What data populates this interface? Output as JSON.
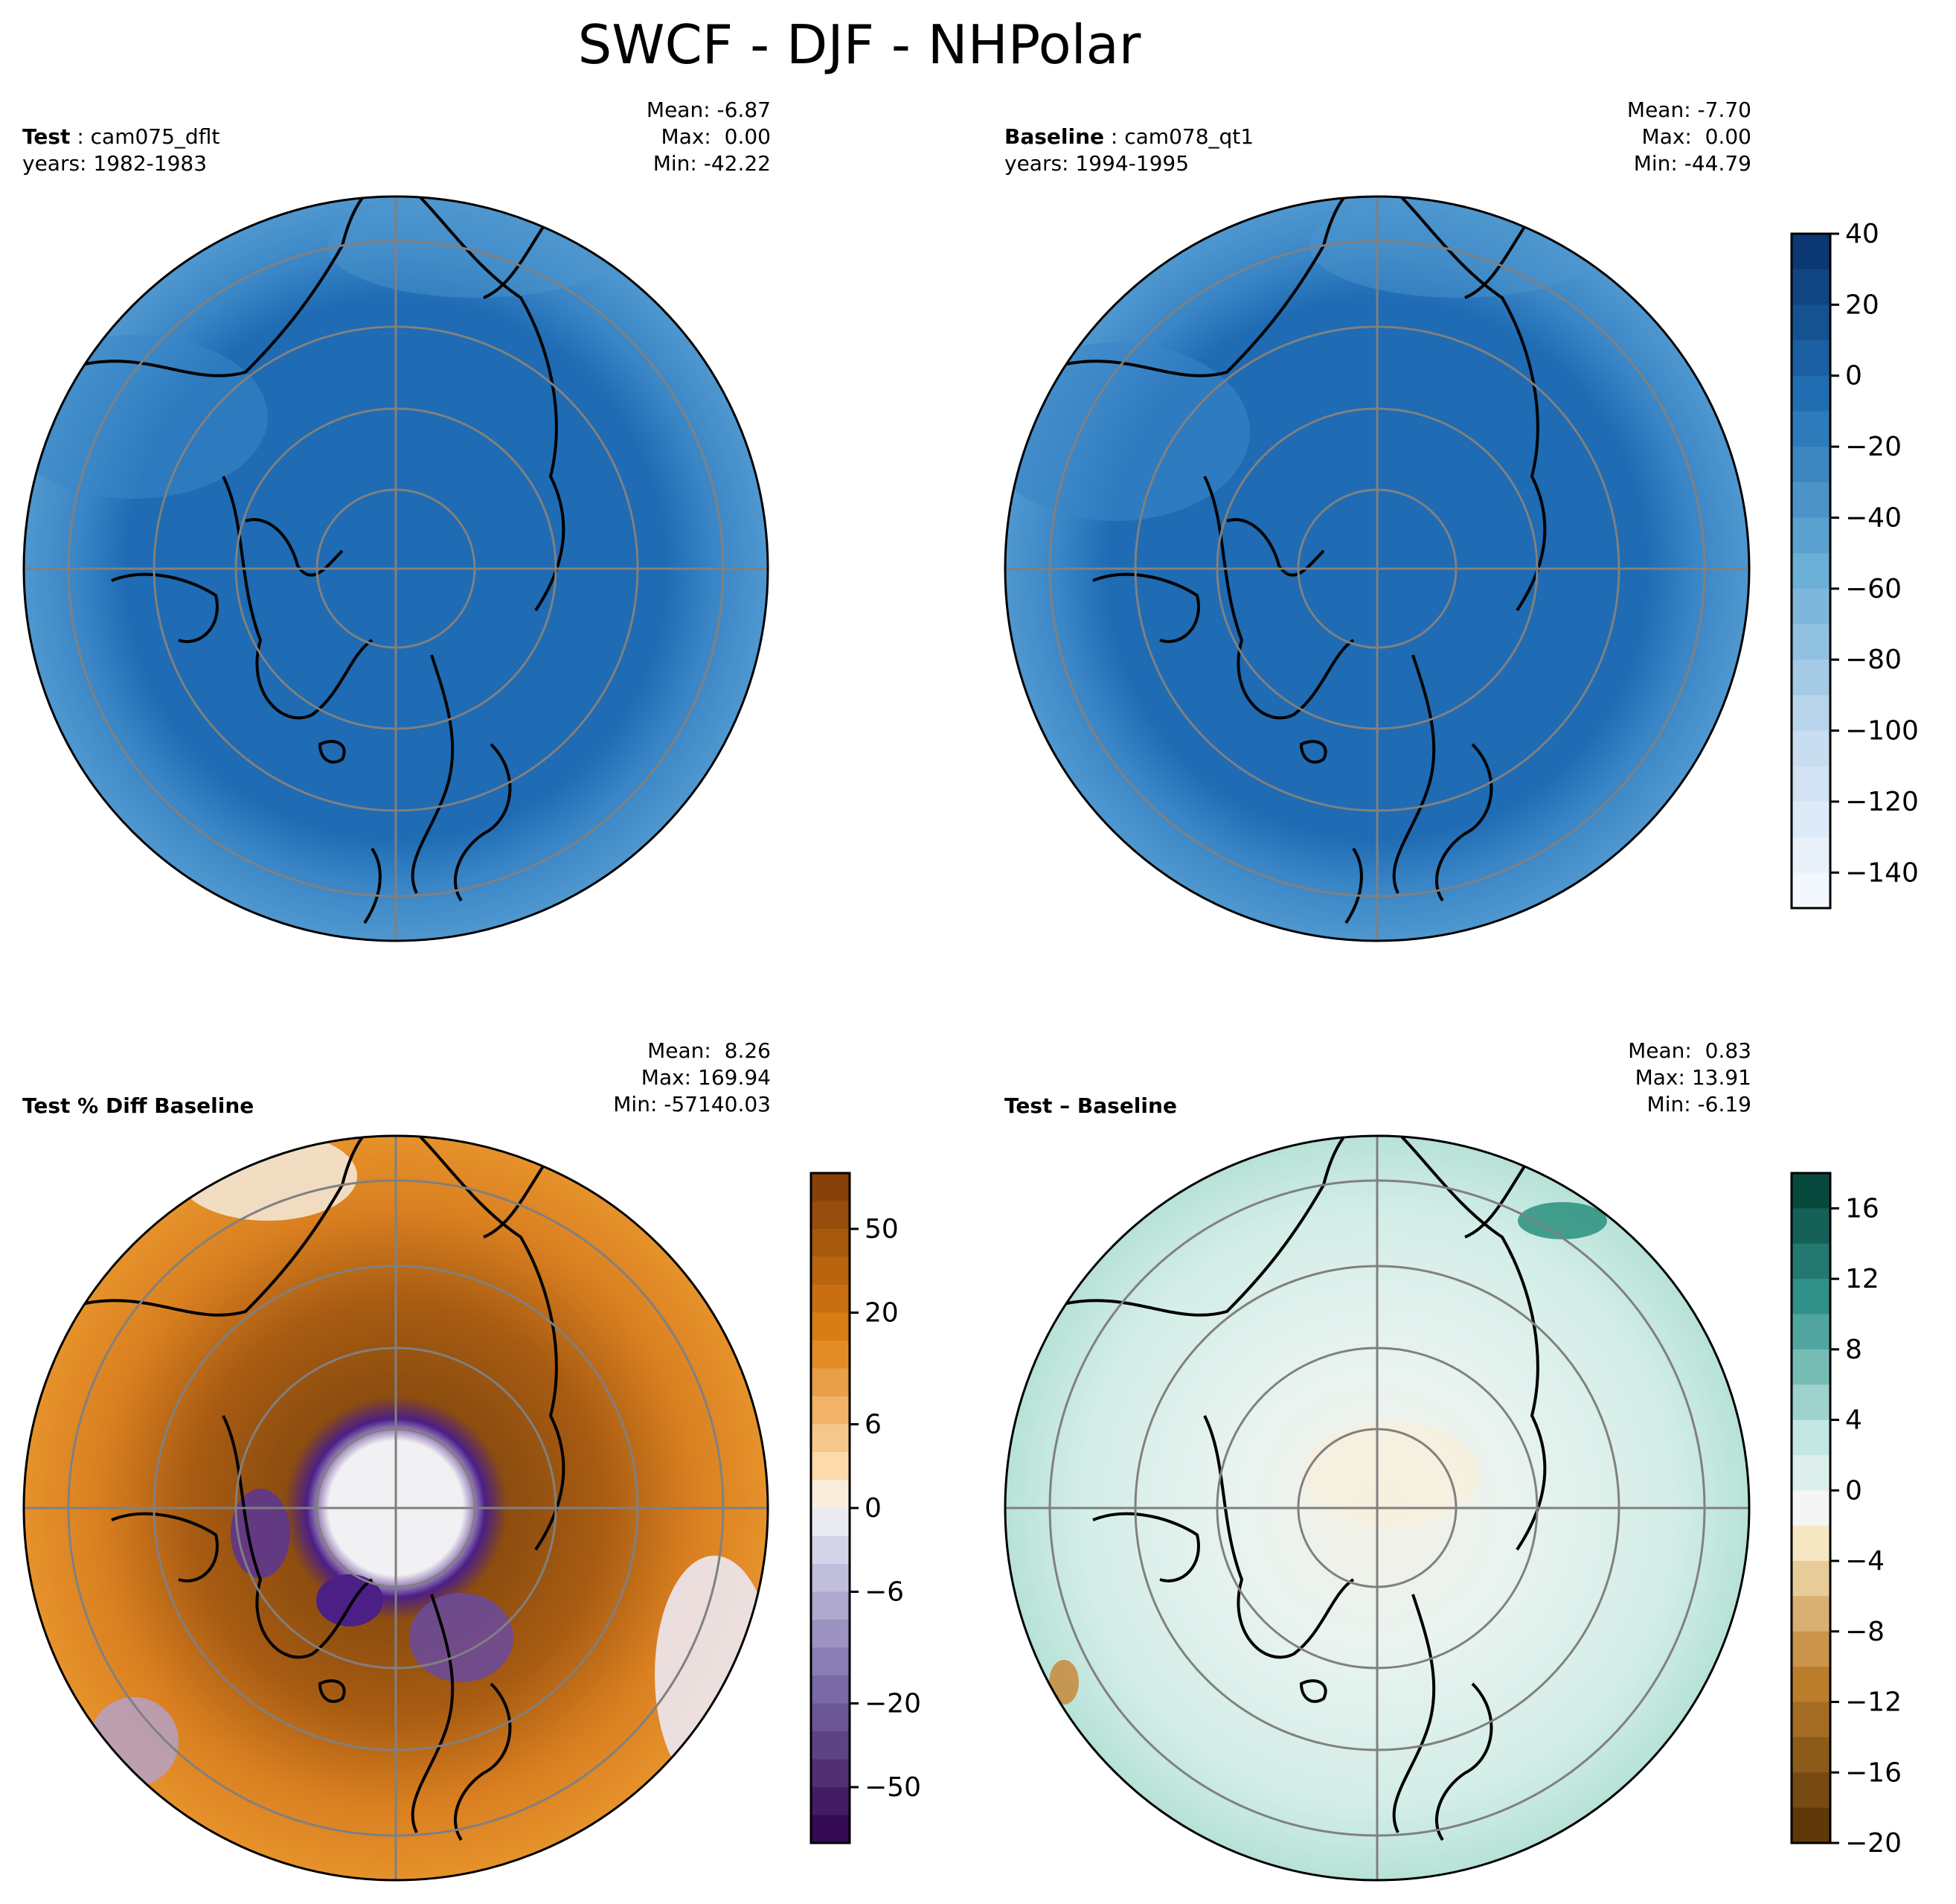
{
  "figure_title": "SWCF - DJF - NHPolar",
  "panels": {
    "test": {
      "label": "Test",
      "case": "cam075_dflt",
      "years": "years: 1982-1983",
      "mean": "Mean: -6.87",
      "max": "Max:  0.00",
      "min": "Min: -42.22"
    },
    "baseline": {
      "label": "Baseline",
      "case": "cam078_qt1",
      "years": "years: 1994-1995",
      "mean": "Mean: -7.70",
      "max": "Max:  0.00",
      "min": "Min: -44.79"
    },
    "pctdiff": {
      "label": "Test % Diff Baseline",
      "mean": "Mean:  8.26",
      "max": "Max: 169.94",
      "min": "Min: -57140.03"
    },
    "diff": {
      "label": "Test – Baseline",
      "mean": "Mean:  0.83",
      "max": "Max: 13.91",
      "min": "Min: -6.19"
    }
  },
  "colors": {
    "blues_dark": "#1f6bb4",
    "blues_mid": "#3a86c6",
    "blues_light": "#5a9fd2",
    "coast": "#000000",
    "grid": "#808080",
    "brown_dark": "#8c4d0f",
    "brown_mid": "#c76e17",
    "orange": "#e6922b",
    "purple": "#4b1f86",
    "teal_light": "#d6eeea",
    "teal_mid": "#8fd1c2"
  },
  "chart_data": [
    {
      "type": "heatmap",
      "projection": "north-polar-stereographic",
      "panel": "test",
      "field": "SWCF",
      "stats": {
        "mean": -6.87,
        "max": 0.0,
        "min": -42.22
      },
      "dominant_range": [
        -20,
        0
      ],
      "edge_range": [
        -40,
        -20
      ]
    },
    {
      "type": "heatmap",
      "projection": "north-polar-stereographic",
      "panel": "baseline",
      "field": "SWCF",
      "stats": {
        "mean": -7.7,
        "max": 0.0,
        "min": -44.79
      },
      "dominant_range": [
        -20,
        0
      ],
      "edge_range": [
        -40,
        -20
      ],
      "colorbar": {
        "cmap": "Blues",
        "range": [
          -150,
          40
        ],
        "ticks": [
          40,
          20,
          0,
          -20,
          -40,
          -60,
          -80,
          -100,
          -120,
          -140
        ],
        "tick_labels": [
          "40",
          "20",
          "0",
          "−20",
          "−40",
          "−60",
          "−80",
          "−100",
          "−120",
          "−140"
        ]
      }
    },
    {
      "type": "heatmap",
      "projection": "north-polar-stereographic",
      "panel": "pctdiff",
      "stats": {
        "mean": 8.26,
        "max": 169.94,
        "min": -57140.03
      },
      "colorbar": {
        "cmap": "PuOr",
        "levels": [
          -100,
          -75,
          -50,
          -40,
          -30,
          -20,
          -15,
          -10,
          -8,
          -6,
          -4,
          -2,
          0,
          2,
          4,
          6,
          8,
          10,
          15,
          20,
          30,
          40,
          50,
          75,
          100
        ],
        "ticks": [
          50,
          20,
          6,
          0,
          -6,
          -20,
          -50
        ],
        "tick_labels": [
          "50",
          "20",
          "6",
          "0",
          "−6",
          "−20",
          "−50"
        ]
      }
    },
    {
      "type": "heatmap",
      "projection": "north-polar-stereographic",
      "panel": "diff",
      "stats": {
        "mean": 0.83,
        "max": 13.91,
        "min": -6.19
      },
      "colorbar": {
        "cmap": "BrBG",
        "range": [
          -20,
          18
        ],
        "ticks": [
          16,
          12,
          8,
          4,
          0,
          -4,
          -8,
          -12,
          -16,
          -20
        ],
        "tick_labels": [
          "16",
          "12",
          "8",
          "4",
          "0",
          "−4",
          "−8",
          "−12",
          "−16",
          "−20"
        ]
      }
    }
  ]
}
